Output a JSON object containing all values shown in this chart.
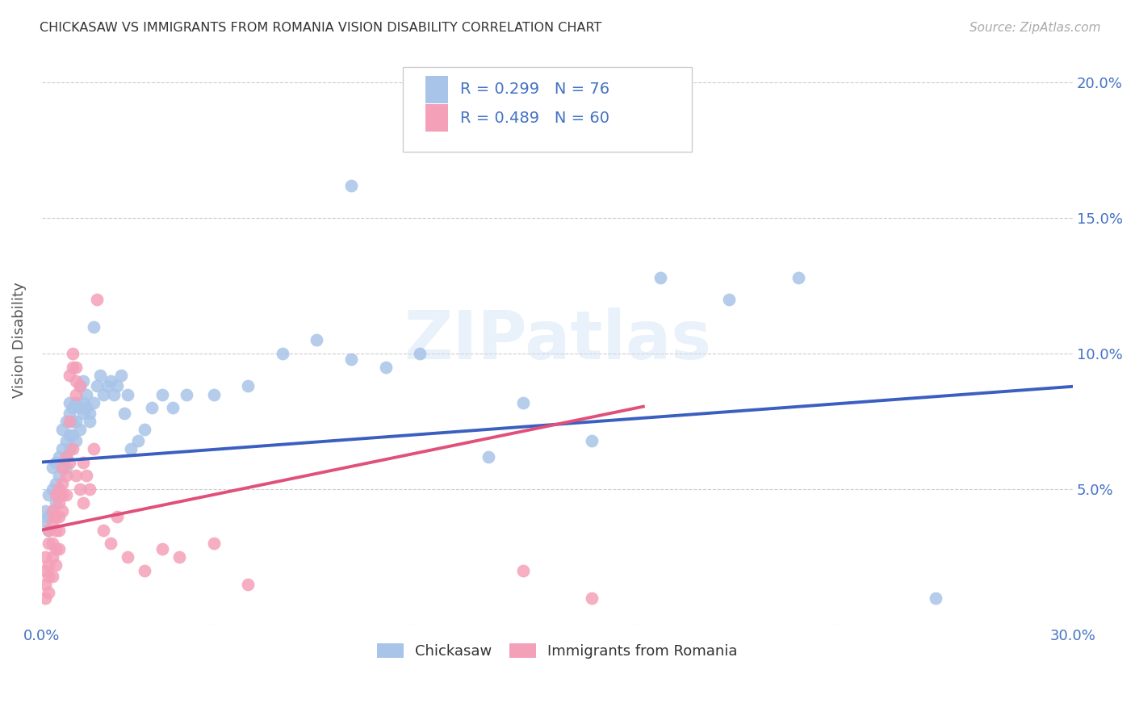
{
  "title": "CHICKASAW VS IMMIGRANTS FROM ROMANIA VISION DISABILITY CORRELATION CHART",
  "source": "Source: ZipAtlas.com",
  "ylabel_label": "Vision Disability",
  "xlim": [
    0.0,
    0.3
  ],
  "ylim": [
    0.0,
    0.21
  ],
  "x_tick_positions": [
    0.0,
    0.05,
    0.1,
    0.15,
    0.2,
    0.25,
    0.3
  ],
  "x_tick_labels": [
    "0.0%",
    "",
    "",
    "",
    "",
    "",
    "30.0%"
  ],
  "y_tick_positions": [
    0.0,
    0.05,
    0.1,
    0.15,
    0.2
  ],
  "y_tick_labels": [
    "",
    "5.0%",
    "10.0%",
    "15.0%",
    "20.0%"
  ],
  "chickasaw_color": "#a8c4e8",
  "romania_color": "#f4a0b8",
  "chickasaw_line_color": "#3b5fc0",
  "romania_line_color": "#e0507a",
  "R_chickasaw": 0.299,
  "N_chickasaw": 76,
  "R_romania": 0.489,
  "N_romania": 60,
  "watermark": "ZIPatlas",
  "chickasaw_intercept": 0.06,
  "chickasaw_slope": 0.093,
  "romania_intercept": 0.035,
  "romania_slope": 0.26,
  "chickasaw_scatter": [
    [
      0.001,
      0.038
    ],
    [
      0.001,
      0.042
    ],
    [
      0.002,
      0.035
    ],
    [
      0.002,
      0.04
    ],
    [
      0.002,
      0.048
    ],
    [
      0.003,
      0.042
    ],
    [
      0.003,
      0.05
    ],
    [
      0.003,
      0.058
    ],
    [
      0.004,
      0.052
    ],
    [
      0.004,
      0.045
    ],
    [
      0.004,
      0.06
    ],
    [
      0.005,
      0.055
    ],
    [
      0.005,
      0.048
    ],
    [
      0.005,
      0.062
    ],
    [
      0.005,
      0.05
    ],
    [
      0.006,
      0.058
    ],
    [
      0.006,
      0.065
    ],
    [
      0.006,
      0.072
    ],
    [
      0.007,
      0.062
    ],
    [
      0.007,
      0.068
    ],
    [
      0.007,
      0.075
    ],
    [
      0.007,
      0.058
    ],
    [
      0.008,
      0.065
    ],
    [
      0.008,
      0.07
    ],
    [
      0.008,
      0.078
    ],
    [
      0.008,
      0.082
    ],
    [
      0.009,
      0.07
    ],
    [
      0.009,
      0.075
    ],
    [
      0.009,
      0.08
    ],
    [
      0.01,
      0.068
    ],
    [
      0.01,
      0.075
    ],
    [
      0.01,
      0.082
    ],
    [
      0.011,
      0.072
    ],
    [
      0.011,
      0.08
    ],
    [
      0.011,
      0.088
    ],
    [
      0.012,
      0.078
    ],
    [
      0.012,
      0.082
    ],
    [
      0.012,
      0.09
    ],
    [
      0.013,
      0.08
    ],
    [
      0.013,
      0.085
    ],
    [
      0.014,
      0.075
    ],
    [
      0.014,
      0.078
    ],
    [
      0.015,
      0.082
    ],
    [
      0.015,
      0.11
    ],
    [
      0.016,
      0.088
    ],
    [
      0.017,
      0.092
    ],
    [
      0.018,
      0.085
    ],
    [
      0.019,
      0.088
    ],
    [
      0.02,
      0.09
    ],
    [
      0.021,
      0.085
    ],
    [
      0.022,
      0.088
    ],
    [
      0.023,
      0.092
    ],
    [
      0.024,
      0.078
    ],
    [
      0.025,
      0.085
    ],
    [
      0.026,
      0.065
    ],
    [
      0.028,
      0.068
    ],
    [
      0.03,
      0.072
    ],
    [
      0.032,
      0.08
    ],
    [
      0.035,
      0.085
    ],
    [
      0.038,
      0.08
    ],
    [
      0.042,
      0.085
    ],
    [
      0.05,
      0.085
    ],
    [
      0.06,
      0.088
    ],
    [
      0.07,
      0.1
    ],
    [
      0.08,
      0.105
    ],
    [
      0.09,
      0.098
    ],
    [
      0.11,
      0.1
    ],
    [
      0.13,
      0.062
    ],
    [
      0.16,
      0.068
    ],
    [
      0.09,
      0.162
    ],
    [
      0.2,
      0.12
    ],
    [
      0.22,
      0.128
    ],
    [
      0.18,
      0.128
    ],
    [
      0.14,
      0.082
    ],
    [
      0.1,
      0.095
    ],
    [
      0.26,
      0.01
    ]
  ],
  "romania_scatter": [
    [
      0.001,
      0.01
    ],
    [
      0.001,
      0.015
    ],
    [
      0.001,
      0.02
    ],
    [
      0.001,
      0.025
    ],
    [
      0.002,
      0.018
    ],
    [
      0.002,
      0.022
    ],
    [
      0.002,
      0.03
    ],
    [
      0.002,
      0.035
    ],
    [
      0.002,
      0.012
    ],
    [
      0.003,
      0.025
    ],
    [
      0.003,
      0.03
    ],
    [
      0.003,
      0.038
    ],
    [
      0.003,
      0.018
    ],
    [
      0.003,
      0.042
    ],
    [
      0.004,
      0.035
    ],
    [
      0.004,
      0.04
    ],
    [
      0.004,
      0.028
    ],
    [
      0.004,
      0.022
    ],
    [
      0.004,
      0.048
    ],
    [
      0.005,
      0.04
    ],
    [
      0.005,
      0.045
    ],
    [
      0.005,
      0.035
    ],
    [
      0.005,
      0.05
    ],
    [
      0.005,
      0.028
    ],
    [
      0.006,
      0.048
    ],
    [
      0.006,
      0.052
    ],
    [
      0.006,
      0.042
    ],
    [
      0.006,
      0.058
    ],
    [
      0.007,
      0.055
    ],
    [
      0.007,
      0.062
    ],
    [
      0.007,
      0.048
    ],
    [
      0.008,
      0.06
    ],
    [
      0.008,
      0.092
    ],
    [
      0.008,
      0.075
    ],
    [
      0.009,
      0.065
    ],
    [
      0.009,
      0.095
    ],
    [
      0.009,
      0.1
    ],
    [
      0.01,
      0.09
    ],
    [
      0.01,
      0.095
    ],
    [
      0.01,
      0.085
    ],
    [
      0.01,
      0.055
    ],
    [
      0.011,
      0.088
    ],
    [
      0.011,
      0.05
    ],
    [
      0.012,
      0.045
    ],
    [
      0.012,
      0.06
    ],
    [
      0.013,
      0.055
    ],
    [
      0.014,
      0.05
    ],
    [
      0.015,
      0.065
    ],
    [
      0.016,
      0.12
    ],
    [
      0.018,
      0.035
    ],
    [
      0.02,
      0.03
    ],
    [
      0.022,
      0.04
    ],
    [
      0.025,
      0.025
    ],
    [
      0.03,
      0.02
    ],
    [
      0.035,
      0.028
    ],
    [
      0.04,
      0.025
    ],
    [
      0.05,
      0.03
    ],
    [
      0.06,
      0.015
    ],
    [
      0.14,
      0.02
    ],
    [
      0.16,
      0.01
    ]
  ]
}
